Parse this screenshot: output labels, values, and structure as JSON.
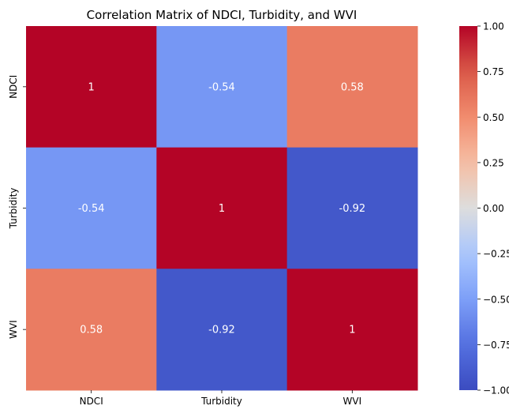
{
  "chart_data": {
    "type": "heatmap",
    "title": "Correlation Matrix of NDCI, Turbidity, and WVI",
    "x_categories": [
      "NDCI",
      "Turbidity",
      "WVI"
    ],
    "y_categories": [
      "NDCI",
      "Turbidity",
      "WVI"
    ],
    "values": [
      [
        1,
        -0.54,
        0.58
      ],
      [
        -0.54,
        1,
        -0.92
      ],
      [
        0.58,
        -0.92,
        1
      ]
    ],
    "value_labels": [
      [
        "1",
        "-0.54",
        "0.58"
      ],
      [
        "-0.54",
        "1",
        "-0.92"
      ],
      [
        "0.58",
        "-0.92",
        "1"
      ]
    ],
    "colormap": "coolwarm",
    "vmin": -1.0,
    "vmax": 1.0,
    "colorbar_ticks": [
      1.0,
      0.75,
      0.5,
      0.25,
      0.0,
      -0.25,
      -0.5,
      -0.75,
      -1.0
    ],
    "colorbar_tick_labels": [
      "1.00",
      "0.75",
      "0.50",
      "0.25",
      "0.00",
      "−0.25",
      "−0.50",
      "−0.75",
      "−1.00"
    ],
    "annotations": true,
    "xlabel": "",
    "ylabel": ""
  }
}
